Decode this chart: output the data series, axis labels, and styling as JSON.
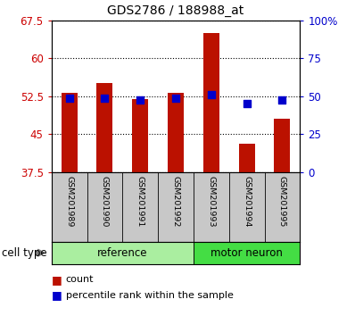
{
  "title": "GDS2786 / 188988_at",
  "samples": [
    "GSM201989",
    "GSM201990",
    "GSM201991",
    "GSM201992",
    "GSM201993",
    "GSM201994",
    "GSM201995"
  ],
  "ref_count": 4,
  "bar_baseline": 37.5,
  "red_values": [
    53.2,
    55.2,
    52.0,
    53.2,
    65.0,
    43.2,
    48.0
  ],
  "blue_values": [
    49.0,
    49.0,
    47.5,
    49.0,
    51.2,
    45.3,
    47.5
  ],
  "ylim": [
    37.5,
    67.5
  ],
  "yticks_left": [
    37.5,
    45.0,
    52.5,
    60.0,
    67.5
  ],
  "yticks_right": [
    0,
    25,
    50,
    75,
    100
  ],
  "bar_color": "#BB1100",
  "dot_color": "#0000CC",
  "ref_group_color": "#AAEEA0",
  "motor_group_color": "#44DD44",
  "sample_bg_color": "#C8C8C8",
  "bar_width": 0.45,
  "blue_dot_size": 28,
  "left_color": "#CC0000",
  "right_color": "#0000CC"
}
